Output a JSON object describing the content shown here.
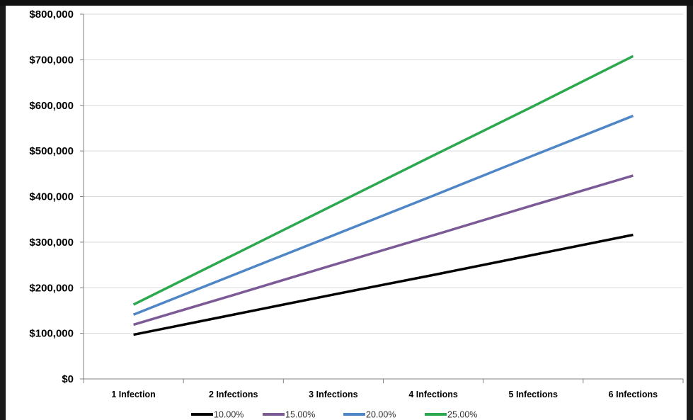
{
  "chart_data": {
    "type": "line",
    "categories": [
      "1 Infection",
      "2 Infections",
      "3 Infections",
      "4 Infections",
      "5 Infections",
      "6 Infections"
    ],
    "y_ticks": [
      "$0",
      "$100,000",
      "$200,000",
      "$300,000",
      "$400,000",
      "$500,000",
      "$600,000",
      "$700,000",
      "$800,000"
    ],
    "ylim": [
      0,
      800000
    ],
    "grid": true,
    "legend_position": "bottom",
    "series": [
      {
        "name": "10.00%",
        "color": "#000000",
        "values": [
          97000,
          141000,
          185000,
          228000,
          272000,
          316000
        ]
      },
      {
        "name": "15.00%",
        "color": "#7b5a96",
        "values": [
          119000,
          184000,
          250000,
          315000,
          381000,
          446000
        ]
      },
      {
        "name": "20.00%",
        "color": "#4f86c6",
        "values": [
          141000,
          228000,
          315000,
          402000,
          490000,
          577000
        ]
      },
      {
        "name": "25.00%",
        "color": "#2ca84e",
        "values": [
          163000,
          272000,
          381000,
          490000,
          598000,
          708000
        ]
      }
    ]
  }
}
